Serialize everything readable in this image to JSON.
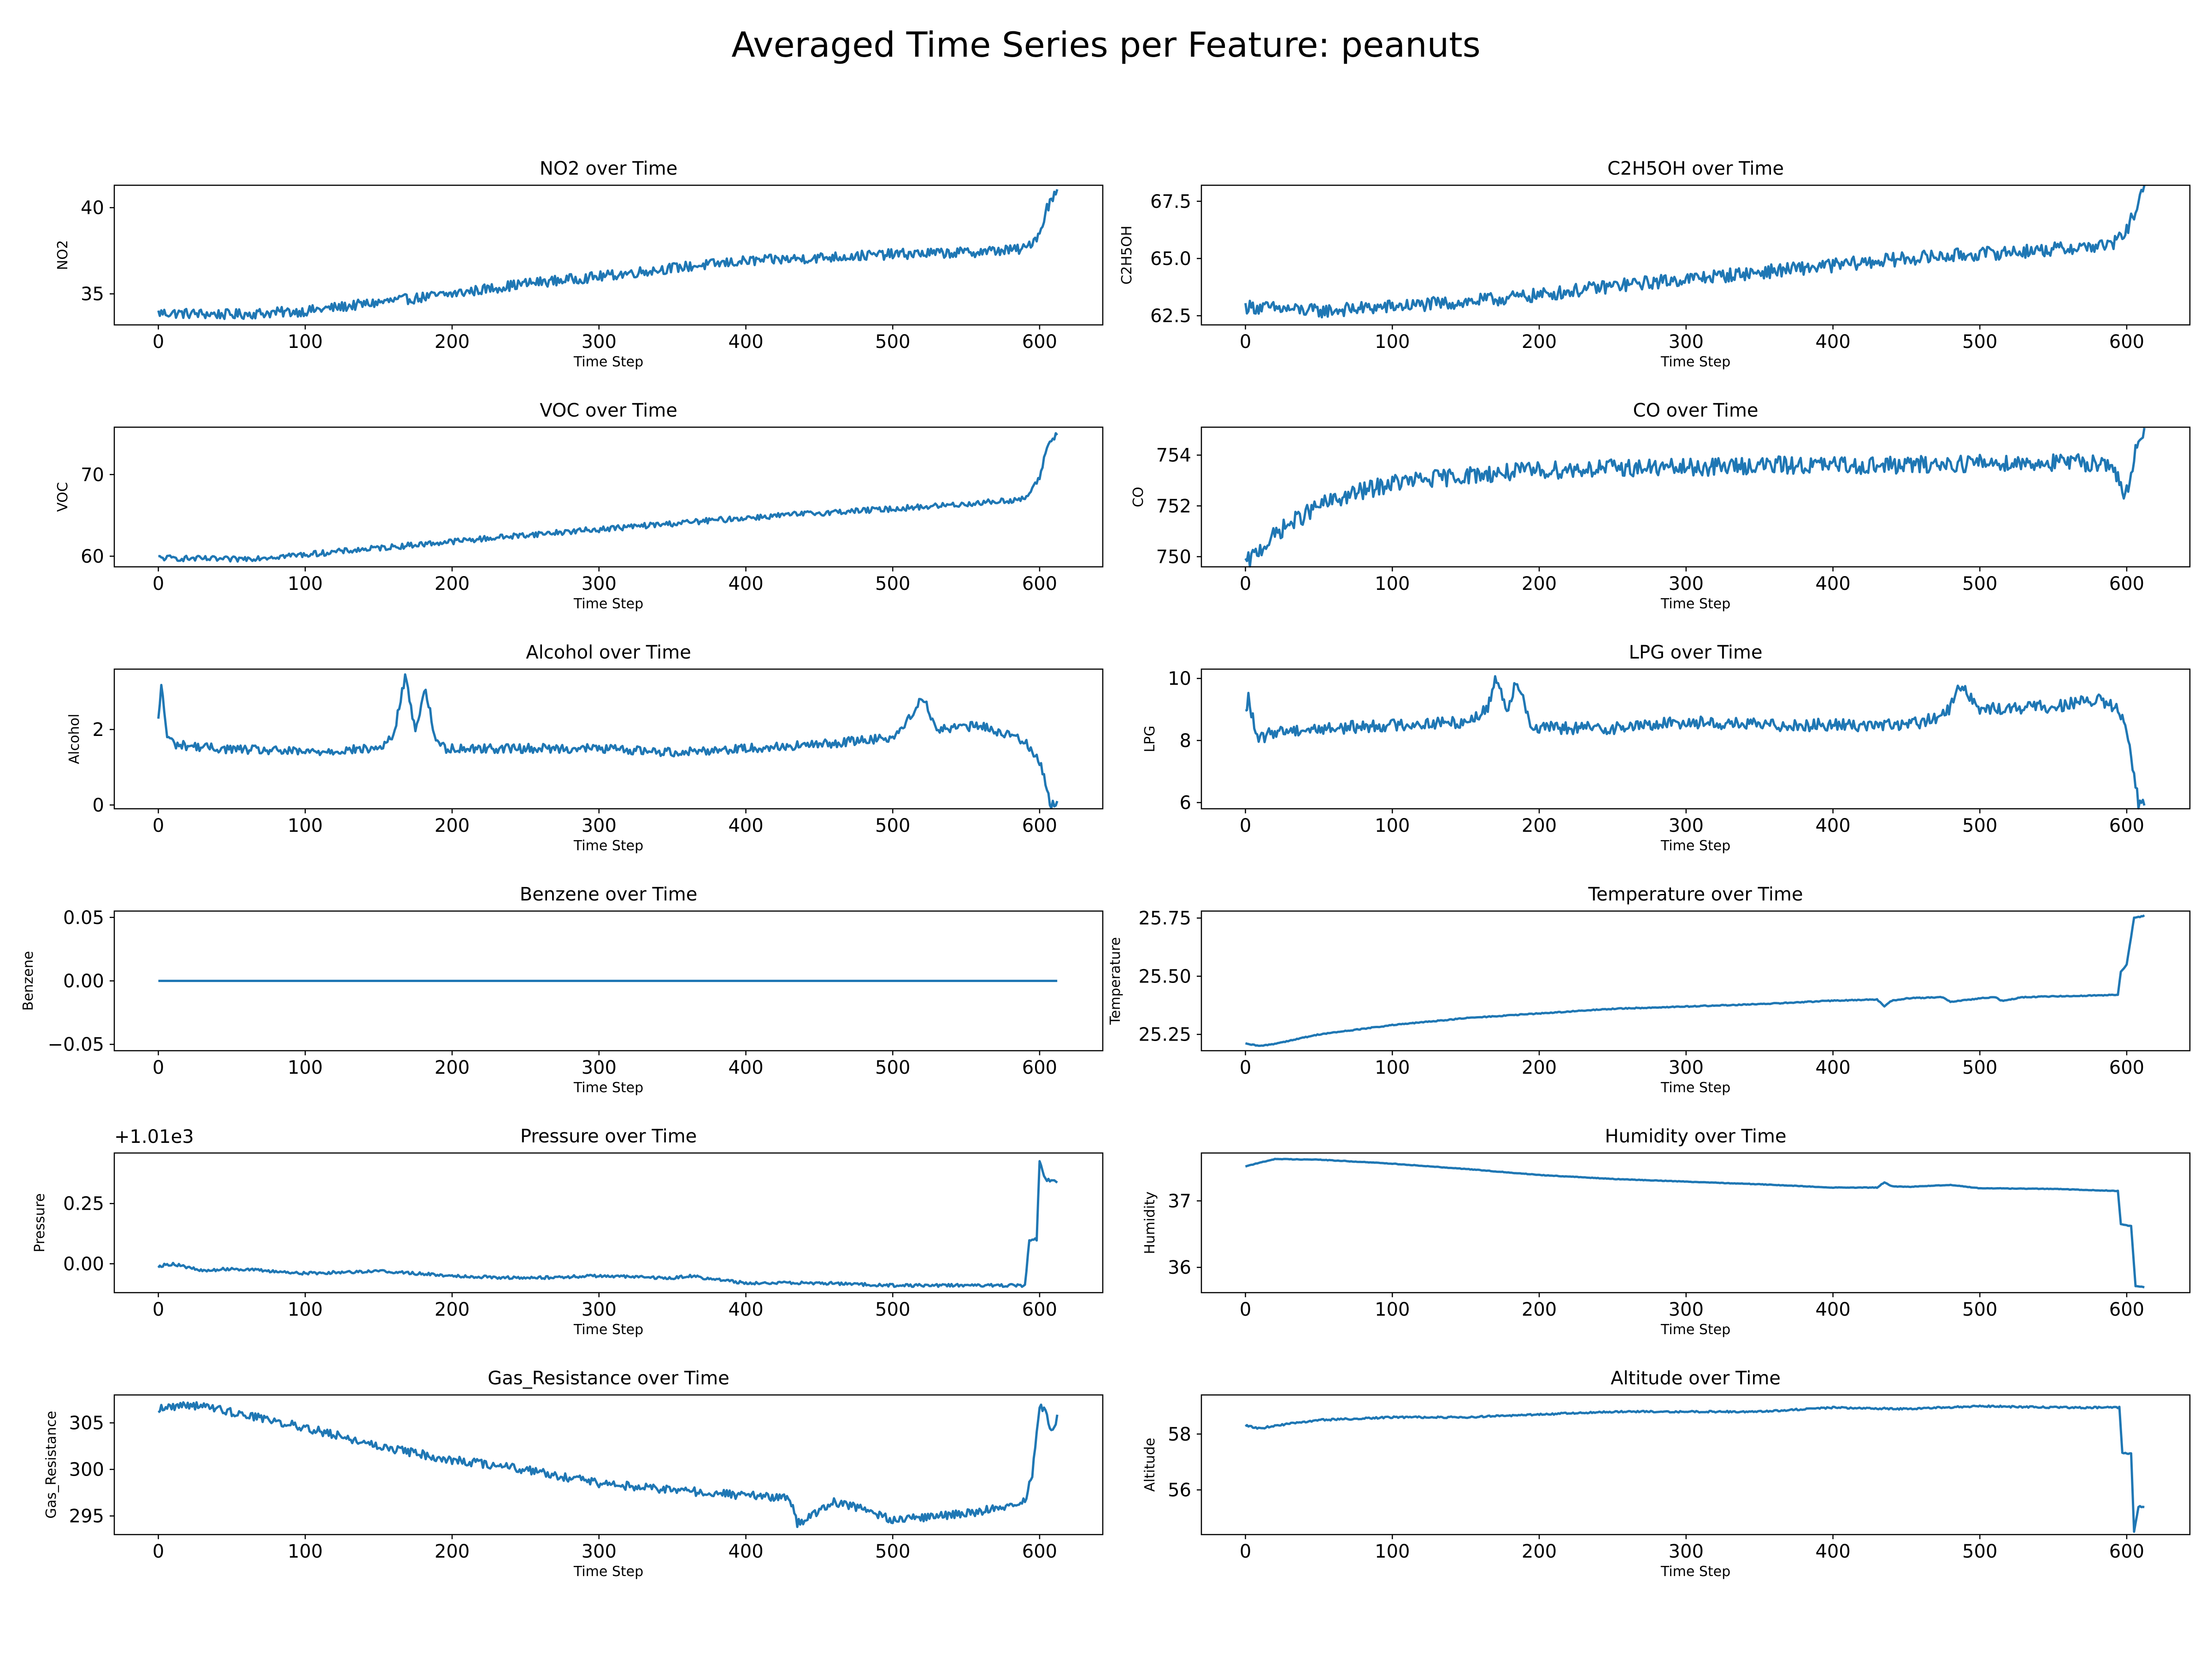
{
  "figure": {
    "suptitle": "Averaged Time Series per Feature: peanuts",
    "line_color": "#1f77b4"
  },
  "chart_data": [
    {
      "type": "line",
      "title": "NO2 over Time",
      "xlabel": "Time Step",
      "ylabel": "NO2",
      "xlim": [
        -30,
        643
      ],
      "ylim": [
        33.2,
        41.3
      ],
      "xticks": [
        0,
        100,
        200,
        300,
        400,
        500,
        600
      ],
      "yticks": [
        35,
        40
      ],
      "x": [
        0,
        50,
        100,
        150,
        200,
        250,
        300,
        350,
        400,
        450,
        500,
        550,
        590,
        600,
        605,
        612
      ],
      "y": [
        33.9,
        33.8,
        34.0,
        34.5,
        35.0,
        35.6,
        36.0,
        36.5,
        36.9,
        37.1,
        37.3,
        37.4,
        37.6,
        38.5,
        40.0,
        41.0
      ],
      "noise": 0.3
    },
    {
      "type": "line",
      "title": "C2H5OH over Time",
      "xlabel": "Time Step",
      "ylabel": "C2H5OH",
      "xlim": [
        -30,
        643
      ],
      "ylim": [
        62.1,
        68.2
      ],
      "xticks": [
        0,
        100,
        200,
        300,
        400,
        500,
        600
      ],
      "yticks": [
        62.5,
        65.0,
        67.5
      ],
      "ytick_labels": [
        "62.5",
        "65.0",
        "67.5"
      ],
      "x": [
        0,
        50,
        100,
        150,
        200,
        250,
        300,
        350,
        400,
        450,
        500,
        550,
        590,
        600,
        605,
        612
      ],
      "y": [
        62.9,
        62.7,
        62.9,
        63.1,
        63.4,
        63.8,
        64.1,
        64.4,
        64.7,
        65.0,
        65.2,
        65.4,
        65.6,
        66.2,
        67.0,
        68.0
      ],
      "noise": 0.3
    },
    {
      "type": "line",
      "title": "VOC over Time",
      "xlabel": "Time Step",
      "ylabel": "VOC",
      "xlim": [
        -30,
        643
      ],
      "ylim": [
        58.7,
        75.8
      ],
      "xticks": [
        0,
        100,
        200,
        300,
        400,
        500,
        600
      ],
      "yticks": [
        60,
        70
      ],
      "x": [
        0,
        50,
        100,
        150,
        200,
        250,
        300,
        350,
        400,
        450,
        500,
        550,
        590,
        600,
        605,
        612
      ],
      "y": [
        59.8,
        59.6,
        60.2,
        61.0,
        61.8,
        62.6,
        63.3,
        64.0,
        64.7,
        65.3,
        65.8,
        66.4,
        67.0,
        69.5,
        73.5,
        75.0
      ],
      "noise": 0.35
    },
    {
      "type": "line",
      "title": "CO over Time",
      "xlabel": "Time Step",
      "ylabel": "CO",
      "xlim": [
        -30,
        643
      ],
      "ylim": [
        749.6,
        755.1
      ],
      "xticks": [
        0,
        100,
        200,
        300,
        400,
        500,
        600
      ],
      "yticks": [
        750,
        752,
        754
      ],
      "x": [
        0,
        10,
        25,
        50,
        75,
        100,
        150,
        200,
        250,
        300,
        350,
        400,
        450,
        500,
        550,
        590,
        598,
        602,
        607,
        612
      ],
      "y": [
        749.7,
        750.3,
        751.1,
        752.0,
        752.5,
        752.9,
        753.2,
        753.4,
        753.5,
        753.5,
        753.6,
        753.6,
        753.6,
        753.7,
        753.7,
        753.7,
        752.3,
        752.8,
        754.6,
        755.0
      ],
      "noise": 0.35
    },
    {
      "type": "line",
      "title": "Alcohol over Time",
      "xlabel": "Time Step",
      "ylabel": "Alcohol",
      "xlim": [
        -30,
        643
      ],
      "ylim": [
        -0.1,
        3.6
      ],
      "xticks": [
        0,
        100,
        200,
        300,
        400,
        500,
        600
      ],
      "yticks": [
        0,
        2
      ],
      "x": [
        0,
        2,
        6,
        12,
        40,
        100,
        150,
        160,
        168,
        175,
        182,
        188,
        195,
        250,
        300,
        350,
        400,
        450,
        500,
        510,
        520,
        530,
        560,
        590,
        598,
        603,
        607,
        612
      ],
      "y": [
        2.2,
        3.2,
        1.8,
        1.6,
        1.5,
        1.4,
        1.5,
        1.8,
        3.4,
        2.0,
        3.1,
        1.8,
        1.5,
        1.5,
        1.5,
        1.4,
        1.5,
        1.6,
        1.8,
        2.2,
        2.9,
        2.0,
        2.1,
        1.7,
        1.3,
        0.8,
        0.0,
        0.0
      ],
      "noise": 0.12
    },
    {
      "type": "line",
      "title": "LPG over Time",
      "xlabel": "Time Step",
      "ylabel": "LPG",
      "xlim": [
        -30,
        643
      ],
      "ylim": [
        5.8,
        10.3
      ],
      "xticks": [
        0,
        100,
        200,
        300,
        400,
        500,
        600
      ],
      "yticks": [
        6,
        8,
        10
      ],
      "x": [
        0,
        2,
        8,
        20,
        60,
        100,
        150,
        165,
        170,
        178,
        185,
        195,
        250,
        300,
        350,
        400,
        450,
        470,
        480,
        485,
        500,
        550,
        580,
        595,
        602,
        608,
        612
      ],
      "y": [
        8.8,
        9.4,
        8.0,
        8.3,
        8.4,
        8.5,
        8.6,
        9.0,
        10.1,
        9.0,
        10.0,
        8.4,
        8.4,
        8.6,
        8.5,
        8.5,
        8.5,
        8.7,
        9.0,
        9.9,
        9.0,
        9.1,
        9.3,
        9.0,
        7.8,
        6.0,
        6.0
      ],
      "noise": 0.2
    },
    {
      "type": "line",
      "title": "Benzene over Time",
      "xlabel": "Time Step",
      "ylabel": "Benzene",
      "xlim": [
        -30,
        643
      ],
      "ylim": [
        -0.055,
        0.055
      ],
      "xticks": [
        0,
        100,
        200,
        300,
        400,
        500,
        600
      ],
      "yticks": [
        -0.05,
        0,
        0.05
      ],
      "ytick_labels": [
        "−0.05",
        "0.00",
        "0.05"
      ],
      "x": [
        0,
        612
      ],
      "y": [
        0,
        0
      ],
      "noise": 0
    },
    {
      "type": "line",
      "title": "Temperature over Time",
      "xlabel": "Time Step",
      "ylabel": "Temperature",
      "xlim": [
        -30,
        643
      ],
      "ylim": [
        25.18,
        25.78
      ],
      "xticks": [
        0,
        100,
        200,
        300,
        400,
        500,
        600
      ],
      "yticks": [
        25.25,
        25.5,
        25.75
      ],
      "ytick_labels": [
        "25.25",
        "25.50",
        "25.75"
      ],
      "x": [
        0,
        10,
        20,
        50,
        100,
        150,
        200,
        250,
        300,
        350,
        400,
        430,
        435,
        440,
        450,
        475,
        480,
        500,
        510,
        515,
        530,
        560,
        594,
        596,
        600,
        605,
        612
      ],
      "y": [
        25.21,
        25.2,
        25.21,
        25.25,
        25.29,
        25.32,
        25.34,
        25.36,
        25.37,
        25.38,
        25.395,
        25.4,
        25.37,
        25.395,
        25.405,
        25.41,
        25.39,
        25.405,
        25.41,
        25.395,
        25.41,
        25.415,
        25.42,
        25.52,
        25.55,
        25.75,
        25.76
      ],
      "noise": 0.002
    },
    {
      "type": "line",
      "title": "Pressure over Time",
      "xlabel": "Time Step",
      "ylabel": "Pressure",
      "offset_label": "+1.01e3",
      "xlim": [
        -30,
        643
      ],
      "ylim": [
        -0.12,
        0.46
      ],
      "xticks": [
        0,
        100,
        200,
        300,
        400,
        500,
        600
      ],
      "yticks": [
        0,
        0.25
      ],
      "ytick_labels": [
        "0.00",
        "0.25"
      ],
      "x": [
        0,
        10,
        30,
        50,
        100,
        150,
        200,
        250,
        300,
        350,
        360,
        400,
        450,
        500,
        550,
        590,
        593,
        598,
        600,
        604,
        612
      ],
      "y": [
        -0.01,
        0.0,
        -0.03,
        -0.02,
        -0.04,
        -0.03,
        -0.05,
        -0.06,
        -0.05,
        -0.06,
        -0.05,
        -0.08,
        -0.08,
        -0.09,
        -0.09,
        -0.09,
        0.1,
        0.1,
        0.43,
        0.35,
        0.34
      ],
      "noise": 0.006
    },
    {
      "type": "line",
      "title": "Humidity over Time",
      "xlabel": "Time Step",
      "ylabel": "Humidity",
      "xlim": [
        -30,
        643
      ],
      "ylim": [
        35.62,
        37.72
      ],
      "xticks": [
        0,
        100,
        200,
        300,
        400,
        500,
        600
      ],
      "yticks": [
        36,
        37
      ],
      "x": [
        0,
        20,
        50,
        100,
        150,
        200,
        250,
        300,
        350,
        400,
        430,
        435,
        440,
        450,
        480,
        500,
        550,
        594,
        596,
        603,
        606,
        612
      ],
      "y": [
        37.52,
        37.63,
        37.62,
        37.56,
        37.48,
        37.39,
        37.33,
        37.29,
        37.25,
        37.2,
        37.2,
        37.28,
        37.22,
        37.21,
        37.24,
        37.19,
        37.18,
        37.15,
        36.65,
        36.62,
        35.72,
        35.7
      ],
      "noise": 0.004
    },
    {
      "type": "line",
      "title": "Gas_Resistance over Time",
      "xlabel": "Time Step",
      "ylabel": "Gas_Resistance",
      "xlim": [
        -30,
        643
      ],
      "ylim": [
        293.0,
        308.0
      ],
      "xticks": [
        0,
        100,
        200,
        300,
        400,
        500,
        600
      ],
      "yticks": [
        295,
        300,
        305
      ],
      "x": [
        0,
        20,
        40,
        100,
        150,
        200,
        250,
        300,
        350,
        400,
        430,
        435,
        445,
        460,
        480,
        500,
        530,
        560,
        590,
        595,
        600,
        605,
        607,
        612
      ],
      "y": [
        306.5,
        307.0,
        306.5,
        304.5,
        302.5,
        301.0,
        300.0,
        298.5,
        297.8,
        297.2,
        297.0,
        294.2,
        295.0,
        296.5,
        295.8,
        294.5,
        295.0,
        295.5,
        296.5,
        299.5,
        307.0,
        306.0,
        304.0,
        305.5
      ],
      "noise": 0.45
    },
    {
      "type": "line",
      "title": "Altitude over Time",
      "xlabel": "Time Step",
      "ylabel": "Altitude",
      "xlim": [
        -30,
        643
      ],
      "ylim": [
        54.4,
        59.4
      ],
      "xticks": [
        0,
        100,
        200,
        300,
        400,
        500,
        600
      ],
      "yticks": [
        56,
        58
      ],
      "x": [
        0,
        10,
        20,
        50,
        100,
        150,
        200,
        250,
        300,
        350,
        400,
        450,
        500,
        550,
        595,
        597,
        603,
        605,
        608,
        612
      ],
      "y": [
        58.3,
        58.2,
        58.3,
        58.5,
        58.6,
        58.6,
        58.7,
        58.8,
        58.8,
        58.8,
        58.95,
        58.9,
        59.0,
        58.95,
        58.95,
        57.3,
        57.3,
        54.5,
        55.4,
        55.4
      ],
      "noise": 0.03
    }
  ]
}
